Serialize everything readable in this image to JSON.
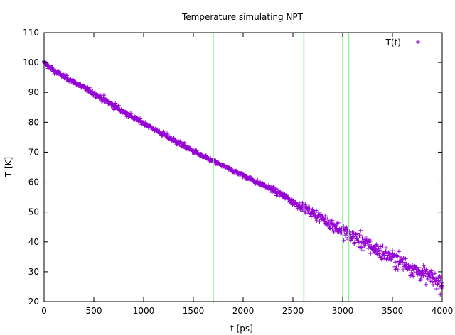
{
  "chart_data": {
    "type": "scatter",
    "title": "Temperature simulating NPT",
    "xlabel": "t [ps]",
    "ylabel": "T [K]",
    "xlim": [
      0,
      4000
    ],
    "ylim": [
      20,
      110
    ],
    "xticks": [
      0,
      500,
      1000,
      1500,
      2000,
      2500,
      3000,
      3500,
      4000
    ],
    "yticks": [
      20,
      30,
      40,
      50,
      60,
      70,
      80,
      90,
      100,
      110
    ],
    "grid": false,
    "legend_position": "top-right",
    "series": [
      {
        "name": "T(t)",
        "marker": "+",
        "color": "#9400d3",
        "x": [
          0,
          50,
          100,
          200,
          300,
          400,
          500,
          600,
          700,
          800,
          900,
          1000,
          1100,
          1200,
          1300,
          1400,
          1500,
          1600,
          1700,
          1800,
          1900,
          2000,
          2100,
          2200,
          2300,
          2400,
          2500,
          2600,
          2700,
          2800,
          2900,
          3000,
          3100,
          3200,
          3300,
          3400,
          3500,
          3600,
          3700,
          3800,
          3900,
          4000
        ],
        "y": [
          100.0,
          98.6,
          97.3,
          95.3,
          93.5,
          91.6,
          89.7,
          87.6,
          85.6,
          83.5,
          81.5,
          79.7,
          77.8,
          75.9,
          74.0,
          72.2,
          70.3,
          68.5,
          67.0,
          65.4,
          63.8,
          62.3,
          60.6,
          59.0,
          57.3,
          55.6,
          53.3,
          51.6,
          49.7,
          47.8,
          45.9,
          43.5,
          41.7,
          40.0,
          38.1,
          36.3,
          34.7,
          33.0,
          31.3,
          29.5,
          27.8,
          26.2
        ],
        "spread": [
          0.6,
          0.8,
          0.8,
          0.7,
          0.6,
          0.7,
          0.7,
          0.9,
          0.9,
          0.9,
          0.7,
          0.6,
          0.6,
          0.7,
          0.8,
          0.8,
          0.7,
          0.6,
          0.5,
          0.5,
          0.5,
          0.6,
          0.7,
          0.7,
          0.8,
          0.9,
          1.0,
          1.1,
          1.3,
          1.5,
          1.8,
          2.0,
          2.2,
          2.3,
          2.3,
          2.3,
          2.3,
          2.3,
          2.2,
          2.2,
          2.2,
          2.2
        ]
      }
    ],
    "vertical_lines": [
      {
        "x": 1700,
        "color": "#90ee90"
      },
      {
        "x": 2610,
        "color": "#90ee90"
      },
      {
        "x": 3000,
        "color": "#90ee90"
      },
      {
        "x": 3060,
        "color": "#90ee90"
      }
    ]
  }
}
